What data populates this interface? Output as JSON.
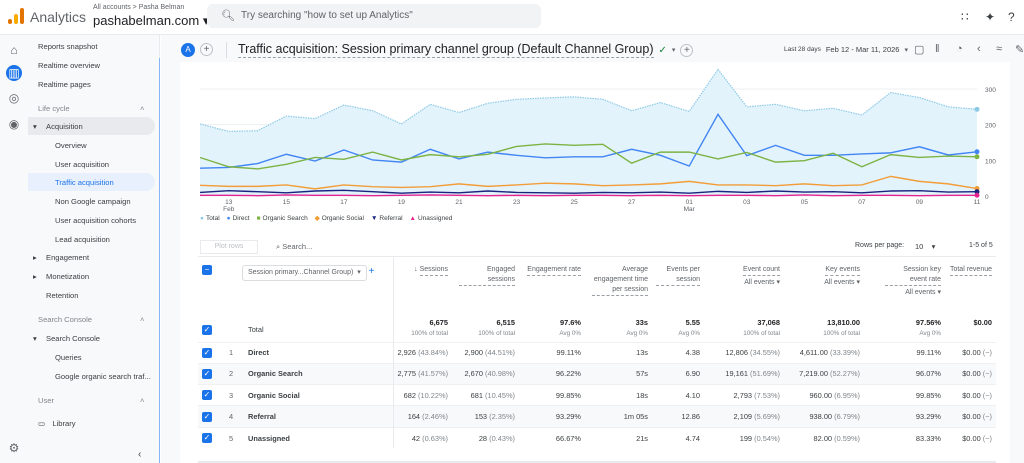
{
  "topbar": {
    "app_name": "Analytics",
    "breadcrumb": "All accounts > Pasha Belman",
    "property": "pashabelman.com ▾",
    "search_placeholder": "Try searching \"how to set up Analytics\""
  },
  "sidebar": {
    "items": [
      {
        "label": "Reports snapshot"
      },
      {
        "label": "Realtime overview"
      },
      {
        "label": "Realtime pages"
      },
      {
        "label": "Life cycle"
      },
      {
        "label": "Acquisition"
      },
      {
        "label": "Overview"
      },
      {
        "label": "User acquisition"
      },
      {
        "label": "Traffic acquisition"
      },
      {
        "label": "Non Google campaign"
      },
      {
        "label": "User acquisition cohorts"
      },
      {
        "label": "Lead acquisition"
      },
      {
        "label": "Engagement"
      },
      {
        "label": "Monetization"
      },
      {
        "label": "Retention"
      },
      {
        "label": "Search Console"
      },
      {
        "label": "Search Console"
      },
      {
        "label": "Queries"
      },
      {
        "label": "Google organic search traf..."
      },
      {
        "label": "User"
      },
      {
        "label": "Library"
      }
    ],
    "active": "Traffic acquisition"
  },
  "header": {
    "avatar": "A",
    "title": "Traffic acquisition: Session primary channel group (Default Channel Group)",
    "date_label": "Last 28 days",
    "date_range": "Feb 12 - Mar 11, 2026"
  },
  "colors": {
    "accent": "#1a73e8",
    "total": "#8ecae6",
    "direct": "#4285f4",
    "organic_search": "#7cb342",
    "organic_social": "#f29d38",
    "referral": "#1a237e",
    "unassigned": "#e52592"
  },
  "chart_data": {
    "type": "line",
    "x": [
      "Feb 12",
      "Feb 13",
      "Feb 14",
      "Feb 15",
      "Feb 16",
      "Feb 17",
      "Feb 18",
      "Feb 19",
      "Feb 20",
      "Feb 21",
      "Feb 22",
      "Feb 23",
      "Feb 24",
      "Feb 25",
      "Feb 26",
      "Feb 27",
      "Feb 28",
      "Mar 01",
      "Mar 02",
      "Mar 03",
      "Mar 04",
      "Mar 05",
      "Mar 06",
      "Mar 07",
      "Mar 08",
      "Mar 09",
      "Mar 10",
      "Mar 11"
    ],
    "x_tick_labels": [
      {
        "day": "13",
        "month": "Feb"
      },
      {
        "day": "15"
      },
      {
        "day": "17"
      },
      {
        "day": "19"
      },
      {
        "day": "21"
      },
      {
        "day": "23"
      },
      {
        "day": "25"
      },
      {
        "day": "27"
      },
      {
        "day": "01",
        "month": "Mar"
      },
      {
        "day": "03"
      },
      {
        "day": "05"
      },
      {
        "day": "07"
      },
      {
        "day": "09"
      },
      {
        "day": "11"
      }
    ],
    "y_ticks": [
      "0",
      "100",
      "200",
      "300"
    ],
    "ylim": [
      0,
      320
    ],
    "y_axis": "right",
    "legend": "bottom-left",
    "series": [
      {
        "name": "Total",
        "values": [
          202,
          181,
          183,
          224,
          217,
          255,
          239,
          202,
          257,
          234,
          260,
          271,
          275,
          278,
          271,
          239,
          262,
          237,
          355,
          250,
          257,
          239,
          246,
          227,
          290,
          276,
          250,
          243
        ]
      },
      {
        "name": "Direct",
        "values": [
          78,
          80,
          91,
          117,
          98,
          129,
          101,
          95,
          131,
          104,
          123,
          114,
          107,
          110,
          110,
          131,
          114,
          84,
          229,
          113,
          142,
          114,
          114,
          118,
          121,
          138,
          115,
          124
        ]
      },
      {
        "name": "Organic Search",
        "values": [
          108,
          82,
          76,
          89,
          108,
          103,
          123,
          101,
          116,
          110,
          117,
          139,
          146,
          142,
          145,
          92,
          123,
          123,
          104,
          122,
          95,
          99,
          120,
          82,
          116,
          108,
          112,
          110
        ]
      },
      {
        "name": "Organic Social",
        "values": [
          30,
          27,
          27,
          31,
          20,
          31,
          26,
          24,
          26,
          34,
          27,
          31,
          36,
          34,
          29,
          31,
          34,
          41,
          31,
          31,
          29,
          34,
          29,
          31,
          55,
          41,
          34,
          21
        ]
      },
      {
        "name": "Referral",
        "values": [
          10,
          15,
          12,
          9,
          14,
          16,
          12,
          8,
          11,
          9,
          14,
          10,
          9,
          8,
          10,
          9,
          11,
          8,
          13,
          10,
          14,
          11,
          12,
          9,
          14,
          15,
          11,
          12
        ]
      },
      {
        "name": "Unassigned",
        "values": [
          2,
          2,
          1,
          3,
          2,
          2,
          1,
          2,
          3,
          2,
          1,
          2,
          1,
          2,
          2,
          1,
          2,
          1,
          2,
          2,
          1,
          3,
          1,
          2,
          2,
          1,
          2,
          2
        ]
      }
    ]
  },
  "table": {
    "plot_rows": "Plot rows",
    "search_placeholder": "Search...",
    "rows_per_page_label": "Rows per page:",
    "rows_per_page": "10",
    "page_count": "1-5 of 5",
    "dimension_select": "Session primary...Channel Group)",
    "columns": [
      {
        "label": "Sessions"
      },
      {
        "label": "Engaged sessions"
      },
      {
        "label": "Engagement rate"
      },
      {
        "label": "Average engagement time per session"
      },
      {
        "label": "Events per session"
      },
      {
        "label": "Event count",
        "sub": "All events ▾"
      },
      {
        "label": "Key events",
        "sub": "All events ▾"
      },
      {
        "label": "Session key event rate",
        "sub": "All events ▾"
      },
      {
        "label": "Total revenue"
      }
    ],
    "total": {
      "label": "Total",
      "values": [
        {
          "v": "6,675",
          "s": "100% of total"
        },
        {
          "v": "6,515",
          "s": "100% of total"
        },
        {
          "v": "97.6%",
          "s": "Avg 0%"
        },
        {
          "v": "33s",
          "s": "Avg 0%"
        },
        {
          "v": "5.55",
          "s": "Avg 0%"
        },
        {
          "v": "37,068",
          "s": "100% of total"
        },
        {
          "v": "13,810.00",
          "s": "100% of total"
        },
        {
          "v": "97.56%",
          "s": "Avg 0%"
        },
        {
          "v": "$0.00",
          "s": ""
        }
      ]
    },
    "rows": [
      {
        "n": "1",
        "name": "Direct",
        "c": [
          [
            "2,926",
            "(43.84%)"
          ],
          [
            "2,900",
            "(44.51%)"
          ],
          [
            "99.11%",
            ""
          ],
          [
            "13s",
            ""
          ],
          [
            "4.38",
            ""
          ],
          [
            "12,806",
            "(34.55%)"
          ],
          [
            "4,611.00",
            "(33.39%)"
          ],
          [
            "99.11%",
            ""
          ],
          [
            "$0.00",
            "(−)"
          ]
        ]
      },
      {
        "n": "2",
        "name": "Organic Search",
        "c": [
          [
            "2,775",
            "(41.57%)"
          ],
          [
            "2,670",
            "(40.98%)"
          ],
          [
            "96.22%",
            ""
          ],
          [
            "57s",
            ""
          ],
          [
            "6.90",
            ""
          ],
          [
            "19,161",
            "(51.69%)"
          ],
          [
            "7,219.00",
            "(52.27%)"
          ],
          [
            "96.07%",
            ""
          ],
          [
            "$0.00",
            "(−)"
          ]
        ]
      },
      {
        "n": "3",
        "name": "Organic Social",
        "c": [
          [
            "682",
            "(10.22%)"
          ],
          [
            "681",
            "(10.45%)"
          ],
          [
            "99.85%",
            ""
          ],
          [
            "18s",
            ""
          ],
          [
            "4.10",
            ""
          ],
          [
            "2,793",
            "(7.53%)"
          ],
          [
            "960.00",
            "(6.95%)"
          ],
          [
            "99.85%",
            ""
          ],
          [
            "$0.00",
            "(−)"
          ]
        ]
      },
      {
        "n": "4",
        "name": "Referral",
        "c": [
          [
            "164",
            "(2.46%)"
          ],
          [
            "153",
            "(2.35%)"
          ],
          [
            "93.29%",
            ""
          ],
          [
            "1m 05s",
            ""
          ],
          [
            "12.86",
            ""
          ],
          [
            "2,109",
            "(5.69%)"
          ],
          [
            "938.00",
            "(6.79%)"
          ],
          [
            "93.29%",
            ""
          ],
          [
            "$0.00",
            "(−)"
          ]
        ]
      },
      {
        "n": "5",
        "name": "Unassigned",
        "c": [
          [
            "42",
            "(0.63%)"
          ],
          [
            "28",
            "(0.43%)"
          ],
          [
            "66.67%",
            ""
          ],
          [
            "21s",
            ""
          ],
          [
            "4.74",
            ""
          ],
          [
            "199",
            "(0.54%)"
          ],
          [
            "82.00",
            "(0.59%)"
          ],
          [
            "83.33%",
            ""
          ],
          [
            "$0.00",
            "(−)"
          ]
        ]
      }
    ]
  }
}
